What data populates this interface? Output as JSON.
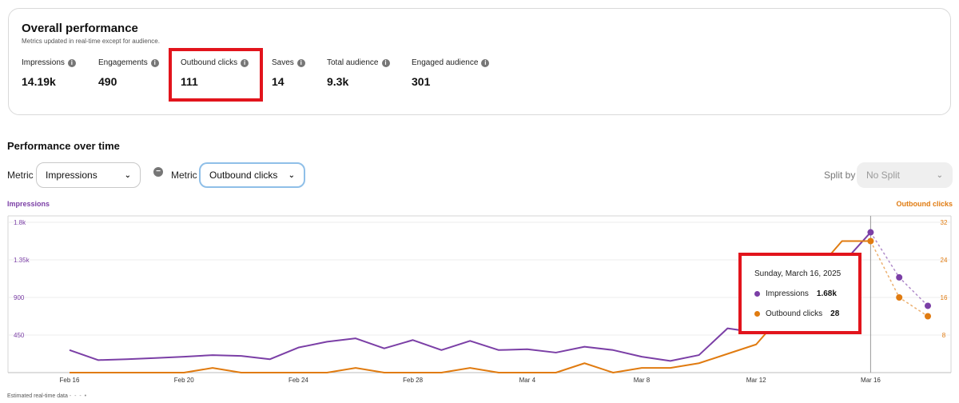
{
  "overview": {
    "title": "Overall performance",
    "subtitle": "Metrics updated in real-time except for audience.",
    "metrics": [
      {
        "label": "Impressions",
        "value": "14.19k"
      },
      {
        "label": "Engagements",
        "value": "490"
      },
      {
        "label": "Outbound clicks",
        "value": "111"
      },
      {
        "label": "Saves",
        "value": "14"
      },
      {
        "label": "Total audience",
        "value": "9.3k"
      },
      {
        "label": "Engaged audience",
        "value": "301"
      }
    ],
    "info_icon": "info-icon",
    "info_glyph": "i"
  },
  "performance": {
    "title": "Performance over time",
    "metric_label": "Metric",
    "metric1_value": "Impressions",
    "metric2_value": "Outbound clicks",
    "split_label": "Split by",
    "split_value": "No Split"
  },
  "icons": {
    "remove": "remove-icon",
    "chevron": "chevron-down-icon",
    "remove_glyph": "−",
    "chevron_glyph": "⌄"
  },
  "tooltip": {
    "date": "Sunday, March 16, 2025",
    "rows": [
      {
        "label": "Impressions",
        "value": "1.68k"
      },
      {
        "label": "Outbound clicks",
        "value": "28"
      }
    ]
  },
  "footer_note": "Estimated real-time data",
  "colors": {
    "impressions": "#7b3fa6",
    "outbound": "#e07b10",
    "highlight": "#e2141c"
  },
  "chart_data": {
    "type": "line",
    "left_axis_label": "Impressions",
    "right_axis_label": "Outbound clicks",
    "x_tick_labels": [
      "Feb 16",
      "Feb 20",
      "Feb 24",
      "Feb 28",
      "Mar 4",
      "Mar 8",
      "Mar 12",
      "Mar 16"
    ],
    "left_ticks": [
      450,
      900,
      1350,
      1800
    ],
    "left_tick_labels": [
      "450",
      "900",
      "1.35k",
      "1.8k"
    ],
    "right_ticks": [
      8,
      16,
      24,
      32
    ],
    "right_tick_labels": [
      "8",
      "16",
      "24",
      "32"
    ],
    "ylim_left": [
      0,
      1800
    ],
    "ylim_right": [
      0,
      32
    ],
    "x_start": "Feb 16",
    "x": [
      "Feb 16",
      "Feb 17",
      "Feb 18",
      "Feb 19",
      "Feb 20",
      "Feb 21",
      "Feb 22",
      "Feb 23",
      "Feb 24",
      "Feb 25",
      "Feb 26",
      "Feb 27",
      "Feb 28",
      "Mar 1",
      "Mar 2",
      "Mar 3",
      "Mar 4",
      "Mar 5",
      "Mar 6",
      "Mar 7",
      "Mar 8",
      "Mar 9",
      "Mar 10",
      "Mar 11",
      "Mar 12",
      "Mar 13",
      "Mar 14",
      "Mar 15",
      "Mar 16",
      "Mar 17",
      "Mar 18"
    ],
    "estimated_from": "Mar 17",
    "series": [
      {
        "name": "Impressions",
        "axis": "left",
        "values": [
          270,
          150,
          160,
          175,
          190,
          210,
          200,
          160,
          300,
          370,
          410,
          290,
          390,
          270,
          380,
          270,
          280,
          240,
          310,
          270,
          190,
          140,
          210,
          530,
          480,
          540,
          620,
          1300,
          1680,
          1140,
          800
        ]
      },
      {
        "name": "Outbound clicks",
        "axis": "right",
        "values": [
          0,
          0,
          0,
          0,
          0,
          1,
          0,
          0,
          0,
          0,
          1,
          0,
          0,
          0,
          1,
          0,
          0,
          0,
          2,
          0,
          1,
          1,
          2,
          4,
          6,
          13,
          21,
          28,
          28,
          16,
          12
        ]
      }
    ]
  }
}
